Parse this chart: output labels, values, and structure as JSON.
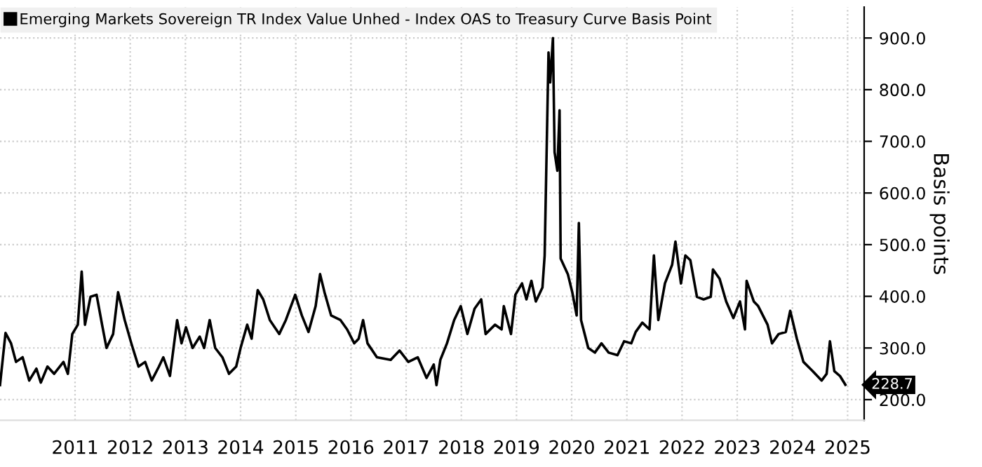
{
  "chart_data": {
    "type": "line",
    "ylabel": "Basis points",
    "legend": "top left",
    "grid": true,
    "line_style": "solid",
    "xlim": [
      2010.14,
      2025.8
    ],
    "xticks": [
      {
        "value": 2011.5,
        "label": "2011"
      },
      {
        "value": 2012.5,
        "label": "2012"
      },
      {
        "value": 2013.5,
        "label": "2013"
      },
      {
        "value": 2014.5,
        "label": "2014"
      },
      {
        "value": 2015.5,
        "label": "2015"
      },
      {
        "value": 2016.5,
        "label": "2016"
      },
      {
        "value": 2017.5,
        "label": "2017"
      },
      {
        "value": 2018.5,
        "label": "2018"
      },
      {
        "value": 2019.5,
        "label": "2019"
      },
      {
        "value": 2020.5,
        "label": "2020"
      },
      {
        "value": 2021.5,
        "label": "2021"
      },
      {
        "value": 2022.5,
        "label": "2022"
      },
      {
        "value": 2023.5,
        "label": "2023"
      },
      {
        "value": 2024.5,
        "label": "2024"
      },
      {
        "value": 2025.5,
        "label": "2025"
      }
    ],
    "ylim": [
      160,
      960
    ],
    "yticks": [
      {
        "value": 200,
        "label": "200.0"
      },
      {
        "value": 300,
        "label": "300.0"
      },
      {
        "value": 400,
        "label": "400.0"
      },
      {
        "value": 500,
        "label": "500.0"
      },
      {
        "value": 600,
        "label": "600.0"
      },
      {
        "value": 700,
        "label": "700.0"
      },
      {
        "value": 800,
        "label": "800.0"
      },
      {
        "value": 900,
        "label": "900.0"
      }
    ],
    "annotations": [
      {
        "text": "228.7",
        "x": 2025.46,
        "y": 228.7
      }
    ],
    "series": [
      {
        "name": "Emerging Markets Sovereign TR Index Value Unhed - Index OAS to Treasury Curve Basis Point",
        "color": "#000000",
        "x": [
          2010.14,
          2010.24,
          2010.34,
          2010.43,
          2010.55,
          2010.67,
          2010.8,
          2010.88,
          2011.0,
          2011.12,
          2011.29,
          2011.37,
          2011.45,
          2011.55,
          2011.62,
          2011.68,
          2011.78,
          2011.89,
          2011.99,
          2012.07,
          2012.19,
          2012.28,
          2012.4,
          2012.52,
          2012.65,
          2012.77,
          2012.89,
          2013.02,
          2013.1,
          2013.22,
          2013.35,
          2013.43,
          2013.51,
          2013.63,
          2013.76,
          2013.84,
          2013.94,
          2014.04,
          2014.17,
          2014.29,
          2014.42,
          2014.5,
          2014.62,
          2014.7,
          2014.81,
          2014.91,
          2015.03,
          2015.2,
          2015.32,
          2015.49,
          2015.61,
          2015.73,
          2015.86,
          2015.94,
          2016.02,
          2016.14,
          2016.31,
          2016.43,
          2016.56,
          2016.64,
          2016.72,
          2016.8,
          2016.97,
          2017.22,
          2017.38,
          2017.54,
          2017.71,
          2017.87,
          2018.0,
          2018.05,
          2018.12,
          2018.24,
          2018.37,
          2018.49,
          2018.61,
          2018.74,
          2018.86,
          2018.94,
          2019.11,
          2019.23,
          2019.27,
          2019.4,
          2019.48,
          2019.6,
          2019.68,
          2019.77,
          2019.85,
          2019.97,
          2020.01,
          2020.08,
          2020.11,
          2020.16,
          2020.19,
          2020.24,
          2020.28,
          2020.3,
          2020.43,
          2020.51,
          2020.59,
          2020.63,
          2020.67,
          2020.8,
          2020.92,
          2021.04,
          2021.17,
          2021.33,
          2021.45,
          2021.58,
          2021.66,
          2021.78,
          2021.91,
          2021.99,
          2022.07,
          2022.19,
          2022.32,
          2022.38,
          2022.48,
          2022.56,
          2022.65,
          2022.77,
          2022.89,
          2023.02,
          2023.06,
          2023.18,
          2023.3,
          2023.43,
          2023.55,
          2023.64,
          2023.67,
          2023.8,
          2023.88,
          2024.05,
          2024.13,
          2024.25,
          2024.38,
          2024.46,
          2024.58,
          2024.7,
          2024.87,
          2025.03,
          2025.12,
          2025.18,
          2025.26,
          2025.36,
          2025.46
        ],
        "values": [
          228,
          329,
          309,
          273,
          282,
          237,
          260,
          233,
          264,
          250,
          273,
          250,
          327,
          345,
          448,
          345,
          399,
          403,
          345,
          300,
          327,
          408,
          354,
          309,
          264,
          273,
          237,
          264,
          282,
          246,
          354,
          309,
          340,
          300,
          322,
          300,
          354,
          300,
          282,
          250,
          264,
          300,
          345,
          318,
          412,
          394,
          354,
          327,
          354,
          403,
          363,
          331,
          381,
          443,
          408,
          363,
          354,
          336,
          309,
          318,
          354,
          309,
          282,
          277,
          295,
          273,
          282,
          242,
          268,
          228,
          277,
          309,
          354,
          381,
          327,
          376,
          394,
          327,
          345,
          336,
          381,
          327,
          403,
          425,
          394,
          430,
          390,
          417,
          479,
          872,
          814,
          900,
          679,
          643,
          760,
          473,
          443,
          408,
          363,
          542,
          354,
          300,
          291,
          309,
          291,
          286,
          313,
          309,
          331,
          349,
          336,
          479,
          354,
          425,
          461,
          506,
          425,
          479,
          470,
          399,
          394,
          399,
          452,
          434,
          390,
          358,
          390,
          336,
          430,
          390,
          381,
          345,
          309,
          327,
          331,
          372,
          318,
          273,
          255,
          237,
          250,
          313,
          255,
          246,
          228.7
        ]
      }
    ]
  }
}
